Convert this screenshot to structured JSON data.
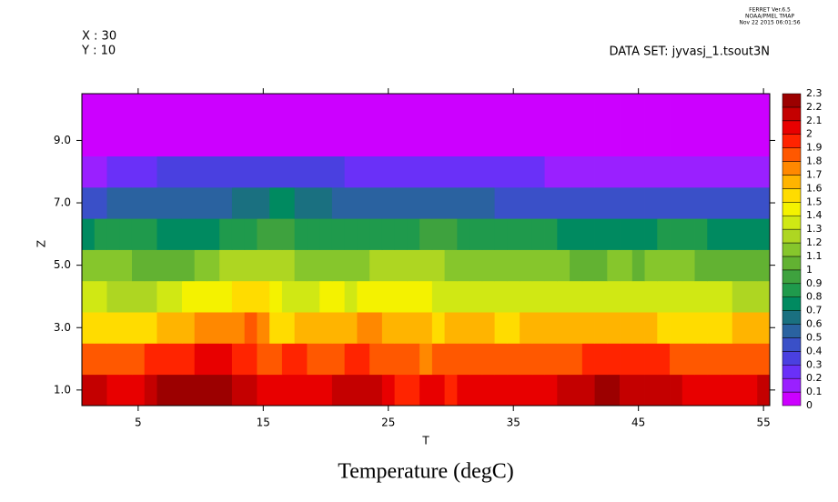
{
  "chart_data": {
    "type": "heatmap",
    "title": "Temperature (degC)",
    "xlabel": "T",
    "ylabel": "Z",
    "header_left": [
      "X : 30",
      "Y : 10"
    ],
    "dataset": "DATA SET: jyvasj_1.tsout3N",
    "stamp": [
      "FERRET  Ver.6.5",
      "NOAA/PMEL TMAP",
      "Nov 22 2015 06:01:56"
    ],
    "x": [
      1,
      2,
      3,
      4,
      5,
      6,
      7,
      8,
      9,
      10,
      11,
      12,
      13,
      14,
      15,
      16,
      17,
      18,
      19,
      20,
      21,
      22,
      23,
      24,
      25,
      26,
      27,
      28,
      29,
      30,
      31,
      32,
      33,
      34,
      35,
      36,
      37,
      38,
      39,
      40,
      41,
      42,
      43,
      44,
      45,
      46,
      47,
      48,
      49,
      50,
      51,
      52,
      53,
      54,
      55
    ],
    "y": [
      1,
      2,
      3,
      4,
      5,
      6,
      7,
      8,
      9,
      10
    ],
    "xlim": [
      0.5,
      55.5
    ],
    "ylim": [
      0.5,
      10.5
    ],
    "xticks": [
      5,
      15,
      25,
      35,
      45,
      55
    ],
    "yticks": [
      {
        "value": 1,
        "label": "1.0"
      },
      {
        "value": 3,
        "label": "3.0"
      },
      {
        "value": 5,
        "label": "5.0"
      },
      {
        "value": 7,
        "label": "7.0"
      },
      {
        "value": 9,
        "label": "9.0"
      }
    ],
    "levels": [
      0,
      0.1,
      0.2,
      0.3,
      0.4,
      0.5,
      0.6,
      0.7,
      0.8,
      0.9,
      1,
      1.1,
      1.2,
      1.3,
      1.4,
      1.5,
      1.6,
      1.7,
      1.8,
      1.9,
      2,
      2.1,
      2.2,
      2.3
    ],
    "colors": [
      "#cc00ff",
      "#9a20ff",
      "#6a30f8",
      "#4a40e0",
      "#3a50c8",
      "#2a62a0",
      "#1a7080",
      "#008a60",
      "#1f9a4c",
      "#3ea23e",
      "#62b232",
      "#86c62c",
      "#aed622",
      "#d0e814",
      "#f4f200",
      "#ffdc00",
      "#ffb400",
      "#ff8800",
      "#ff5800",
      "#ff2400",
      "#e80000",
      "#c40000",
      "#9c0000"
    ],
    "values": [
      [
        2.15,
        2.15,
        2.05,
        2.05,
        2.05,
        2.15,
        2.25,
        2.25,
        2.25,
        2.25,
        2.25,
        2.25,
        2.15,
        2.15,
        2.05,
        2.05,
        2.05,
        2.05,
        2.05,
        2.05,
        2.15,
        2.15,
        2.15,
        2.15,
        2.05,
        1.95,
        1.95,
        2.05,
        2.05,
        1.95,
        2.05,
        2.05,
        2.05,
        2.05,
        2.05,
        2.05,
        2.05,
        2.05,
        2.15,
        2.15,
        2.15,
        2.25,
        2.25,
        2.15,
        2.15,
        2.15,
        2.15,
        2.15,
        2.05,
        2.05,
        2.05,
        2.05,
        2.05,
        2.05,
        2.15
      ],
      [
        1.85,
        1.85,
        1.85,
        1.85,
        1.85,
        1.95,
        1.95,
        1.95,
        1.95,
        2.05,
        2.05,
        2.05,
        1.95,
        1.95,
        1.85,
        1.85,
        1.95,
        1.95,
        1.85,
        1.85,
        1.85,
        1.95,
        1.95,
        1.85,
        1.85,
        1.85,
        1.85,
        1.75,
        1.85,
        1.85,
        1.85,
        1.85,
        1.85,
        1.85,
        1.85,
        1.85,
        1.85,
        1.85,
        1.85,
        1.85,
        1.95,
        1.95,
        1.95,
        1.95,
        1.95,
        1.95,
        1.95,
        1.85,
        1.85,
        1.85,
        1.85,
        1.85,
        1.85,
        1.85,
        1.85
      ],
      [
        1.55,
        1.55,
        1.55,
        1.55,
        1.55,
        1.55,
        1.65,
        1.65,
        1.65,
        1.75,
        1.75,
        1.75,
        1.75,
        1.85,
        1.75,
        1.55,
        1.55,
        1.65,
        1.65,
        1.65,
        1.65,
        1.65,
        1.75,
        1.75,
        1.65,
        1.65,
        1.65,
        1.65,
        1.55,
        1.65,
        1.65,
        1.65,
        1.65,
        1.55,
        1.55,
        1.65,
        1.65,
        1.65,
        1.65,
        1.65,
        1.65,
        1.65,
        1.65,
        1.65,
        1.65,
        1.65,
        1.55,
        1.55,
        1.55,
        1.55,
        1.55,
        1.55,
        1.65,
        1.65,
        1.65
      ],
      [
        1.35,
        1.35,
        1.25,
        1.25,
        1.25,
        1.25,
        1.35,
        1.35,
        1.45,
        1.45,
        1.45,
        1.45,
        1.55,
        1.55,
        1.55,
        1.45,
        1.35,
        1.35,
        1.35,
        1.45,
        1.45,
        1.35,
        1.45,
        1.45,
        1.45,
        1.45,
        1.45,
        1.45,
        1.35,
        1.35,
        1.35,
        1.35,
        1.35,
        1.35,
        1.35,
        1.35,
        1.35,
        1.35,
        1.35,
        1.35,
        1.35,
        1.35,
        1.35,
        1.35,
        1.35,
        1.35,
        1.35,
        1.35,
        1.35,
        1.35,
        1.35,
        1.35,
        1.25,
        1.25,
        1.25
      ],
      [
        1.15,
        1.15,
        1.15,
        1.15,
        1.05,
        1.05,
        1.05,
        1.05,
        1.05,
        1.15,
        1.15,
        1.25,
        1.25,
        1.25,
        1.25,
        1.25,
        1.25,
        1.15,
        1.15,
        1.15,
        1.15,
        1.15,
        1.15,
        1.25,
        1.25,
        1.25,
        1.25,
        1.25,
        1.25,
        1.15,
        1.15,
        1.15,
        1.15,
        1.15,
        1.15,
        1.15,
        1.15,
        1.15,
        1.15,
        1.05,
        1.05,
        1.05,
        1.15,
        1.15,
        1.05,
        1.15,
        1.15,
        1.15,
        1.15,
        1.05,
        1.05,
        1.05,
        1.05,
        1.05,
        1.05
      ],
      [
        0.75,
        0.85,
        0.85,
        0.85,
        0.85,
        0.85,
        0.75,
        0.75,
        0.75,
        0.75,
        0.75,
        0.85,
        0.85,
        0.85,
        0.95,
        0.95,
        0.95,
        0.85,
        0.85,
        0.85,
        0.85,
        0.85,
        0.85,
        0.85,
        0.85,
        0.85,
        0.85,
        0.95,
        0.95,
        0.95,
        0.85,
        0.85,
        0.85,
        0.85,
        0.85,
        0.85,
        0.85,
        0.85,
        0.75,
        0.75,
        0.75,
        0.75,
        0.75,
        0.75,
        0.75,
        0.75,
        0.85,
        0.85,
        0.85,
        0.85,
        0.75,
        0.75,
        0.75,
        0.75,
        0.75
      ],
      [
        0.45,
        0.45,
        0.55,
        0.55,
        0.55,
        0.55,
        0.55,
        0.55,
        0.55,
        0.55,
        0.55,
        0.55,
        0.65,
        0.65,
        0.65,
        0.75,
        0.75,
        0.65,
        0.65,
        0.65,
        0.55,
        0.55,
        0.55,
        0.55,
        0.55,
        0.55,
        0.55,
        0.55,
        0.55,
        0.55,
        0.55,
        0.55,
        0.55,
        0.45,
        0.45,
        0.45,
        0.45,
        0.45,
        0.45,
        0.45,
        0.45,
        0.45,
        0.45,
        0.45,
        0.45,
        0.45,
        0.45,
        0.45,
        0.45,
        0.45,
        0.45,
        0.45,
        0.45,
        0.45,
        0.45
      ],
      [
        0.15,
        0.15,
        0.25,
        0.25,
        0.25,
        0.25,
        0.35,
        0.35,
        0.35,
        0.35,
        0.35,
        0.35,
        0.35,
        0.35,
        0.35,
        0.35,
        0.35,
        0.35,
        0.35,
        0.35,
        0.35,
        0.25,
        0.25,
        0.25,
        0.25,
        0.25,
        0.25,
        0.25,
        0.25,
        0.25,
        0.25,
        0.25,
        0.25,
        0.25,
        0.25,
        0.25,
        0.25,
        0.15,
        0.15,
        0.15,
        0.15,
        0.15,
        0.15,
        0.15,
        0.15,
        0.15,
        0.15,
        0.15,
        0.15,
        0.15,
        0.15,
        0.15,
        0.15,
        0.15,
        0.15
      ],
      [
        0.05,
        0.05,
        0.05,
        0.05,
        0.05,
        0.05,
        0.05,
        0.05,
        0.05,
        0.05,
        0.05,
        0.05,
        0.05,
        0.05,
        0.05,
        0.05,
        0.05,
        0.05,
        0.05,
        0.05,
        0.05,
        0.05,
        0.05,
        0.05,
        0.05,
        0.05,
        0.05,
        0.05,
        0.05,
        0.05,
        0.05,
        0.05,
        0.05,
        0.05,
        0.05,
        0.05,
        0.05,
        0.05,
        0.05,
        0.05,
        0.05,
        0.05,
        0.05,
        0.05,
        0.05,
        0.05,
        0.05,
        0.05,
        0.05,
        0.05,
        0.05,
        0.05,
        0.05,
        0.05,
        0.05
      ],
      [
        0.05,
        0.05,
        0.05,
        0.05,
        0.05,
        0.05,
        0.05,
        0.05,
        0.05,
        0.05,
        0.05,
        0.05,
        0.05,
        0.05,
        0.05,
        0.05,
        0.05,
        0.05,
        0.05,
        0.05,
        0.05,
        0.05,
        0.05,
        0.05,
        0.05,
        0.05,
        0.05,
        0.05,
        0.05,
        0.05,
        0.05,
        0.05,
        0.05,
        0.05,
        0.05,
        0.05,
        0.05,
        0.05,
        0.05,
        0.05,
        0.05,
        0.05,
        0.05,
        0.05,
        0.05,
        0.05,
        0.05,
        0.05,
        0.05,
        0.05,
        0.05,
        0.05,
        0.05,
        0.05,
        0.05
      ]
    ]
  }
}
